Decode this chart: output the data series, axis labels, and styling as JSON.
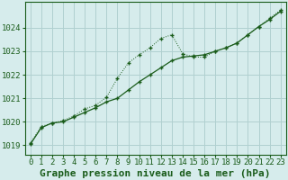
{
  "title": "Graphe pression niveau de la mer (hPa)",
  "background_color": "#d6ecec",
  "grid_color": "#b0d0d0",
  "line_color": "#1a5c1a",
  "xlim": [
    -0.5,
    23.5
  ],
  "ylim": [
    1018.6,
    1025.1
  ],
  "yticks": [
    1019,
    1020,
    1021,
    1022,
    1023,
    1024
  ],
  "xticks": [
    0,
    1,
    2,
    3,
    4,
    5,
    6,
    7,
    8,
    9,
    10,
    11,
    12,
    13,
    14,
    15,
    16,
    17,
    18,
    19,
    20,
    21,
    22,
    23
  ],
  "smooth_x": [
    0,
    1,
    2,
    3,
    4,
    5,
    6,
    7,
    8,
    9,
    10,
    11,
    12,
    13,
    14,
    15,
    16,
    17,
    18,
    19,
    20,
    21,
    22,
    23
  ],
  "smooth_y": [
    1019.05,
    1019.75,
    1019.95,
    1020.0,
    1020.2,
    1020.4,
    1020.6,
    1020.85,
    1021.0,
    1021.35,
    1021.7,
    1022.0,
    1022.3,
    1022.6,
    1022.75,
    1022.8,
    1022.85,
    1023.0,
    1023.15,
    1023.35,
    1023.7,
    1024.05,
    1024.35,
    1024.7
  ],
  "dotted_x": [
    0,
    1,
    2,
    3,
    4,
    5,
    6,
    7,
    8,
    9,
    10,
    11,
    12,
    13,
    14,
    15,
    16,
    17,
    18,
    19,
    20,
    21,
    22,
    23
  ],
  "dotted_y": [
    1019.1,
    1019.8,
    1019.95,
    1020.05,
    1020.25,
    1020.55,
    1020.7,
    1021.05,
    1021.85,
    1022.5,
    1022.85,
    1023.15,
    1023.55,
    1023.7,
    1022.9,
    1022.75,
    1022.75,
    1023.0,
    1023.15,
    1023.35,
    1023.7,
    1024.05,
    1024.4,
    1024.75
  ],
  "title_fontsize": 8,
  "tick_fontsize": 6.5
}
